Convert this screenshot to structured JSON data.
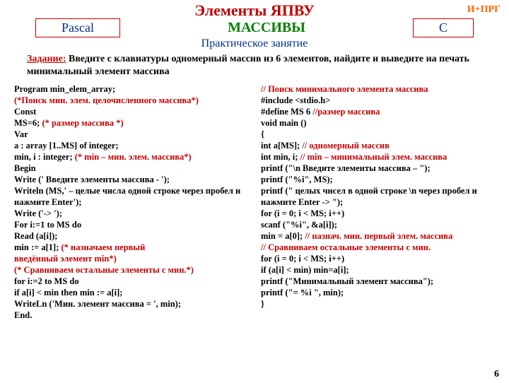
{
  "header": {
    "title": "Элементы  ЯПВУ",
    "corner": "И+ПРГ",
    "left_badge": "Pascal",
    "center_green": "МАССИВЫ",
    "right_badge": "C",
    "subtitle": "Практическое занятие"
  },
  "task": {
    "label": "Задание:",
    "text": " Введите с клавиатуры одномерный массив из 6 элементов, найдите и выведите на печать минимальный элемент массива"
  },
  "pascal": {
    "l1": "Program min_elem_array;",
    "l2": "(*Поиск мин. элем. целочисленного массива*)",
    "l3": "Const",
    "l4a": "     MS=6;   ",
    "l4b": "(* размер массива  *)",
    "l5": "Var",
    "l6": "   a : array [1..MS] of integer;",
    "l7a": "   min, i : integer;   ",
    "l7b": "(* min – мин. элем. массива*)",
    "l8": "Begin",
    "l9": "  Write (' Введите элементы массива - ');",
    "l10": " Writeln (MS,' – целые числа одной строке через пробел и нажмите Enter');",
    "l11": "  Write ('-> ');",
    "l12": "    For i:=1 to MS do",
    "l13": "      Read (a[i]);",
    "l14a": "      min := a[1];   ",
    "l14b": "(* назначаем первый",
    "l14c": "                  введённый элемент  min*)",
    "l15": "(* Сравниваем остальные элементы с мин.*)",
    "l16": "   for i:=2 to MS do",
    "l17": "      if a[i] < min    then    min := a[i];",
    "l18": "WriteLn ('Мин. элемент массива =  ', min);",
    "l19": "End."
  },
  "c": {
    "l1": "// Поиск минимального элемента массива",
    "l2a": "#include ",
    "l2b": "<stdio.h>",
    "l3a": "#define  MS  6       ",
    "l3b": "//размер массива",
    "l4": "void main ()",
    "l5": "{",
    "l6a": "    int a[MS];   ",
    "l6b": "// одномерный массив",
    "l7a": "    int min, i;    ",
    "l7b": "// min – минимальный элем. массива",
    "l8": "printf (\"\\n Введите элементы массива – \");",
    "l9": "printf (\"%i\", MS);",
    "l10": "printf (\" целых чисел в одной строке \\n через пробел и нажмите Enter -> \");",
    "l11": "    for (i = 0; i < MS; i++)",
    "l12": "          scanf (\"%i\", &a[i]);",
    "l13a": "min = a[0]; ",
    "l13b": "// назнач. мин. первый элем. массива",
    "l14": "// Сравниваем остальные элементы с мин.",
    "l15": "   for (i  = 0; i < MS; i++)",
    "l16": "        if (a[i] < min) min=a[i];",
    "l17": "printf (\"Минимальный элемент массива\");",
    "l18": "printf (\"= %i \", min);",
    "l19": "}"
  },
  "page_number": "6",
  "colors": {
    "red": "#c00000",
    "blue": "#003090",
    "green": "#008000",
    "orange": "#ff6600"
  }
}
